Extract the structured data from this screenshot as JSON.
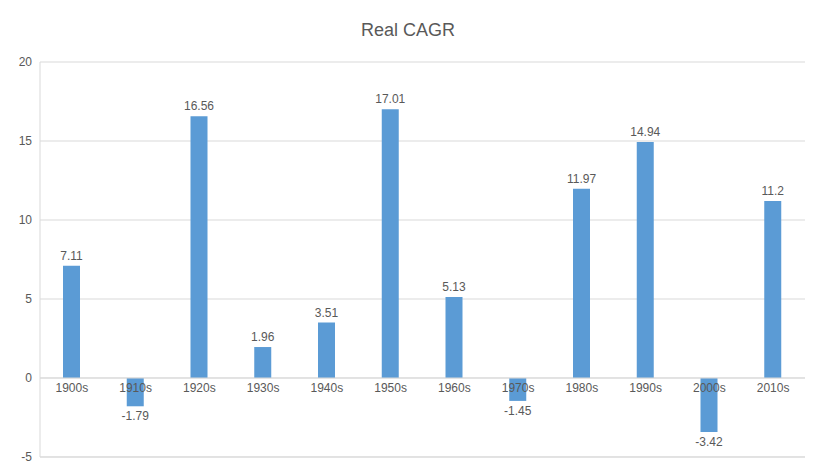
{
  "chart_data": {
    "type": "bar",
    "title": "Real CAGR",
    "categories": [
      "1900s",
      "1910s",
      "1920s",
      "1930s",
      "1940s",
      "1950s",
      "1960s",
      "1970s",
      "1980s",
      "1990s",
      "2000s",
      "2010s"
    ],
    "values": [
      7.11,
      -1.79,
      16.56,
      1.96,
      3.51,
      17.01,
      5.13,
      -1.45,
      11.97,
      14.94,
      -3.42,
      11.2
    ],
    "color": "#5b9bd5",
    "ylim": [
      -5,
      20
    ],
    "yticks": [
      -5,
      0,
      5,
      10,
      15,
      20
    ],
    "grid": true,
    "data_labels": true
  }
}
